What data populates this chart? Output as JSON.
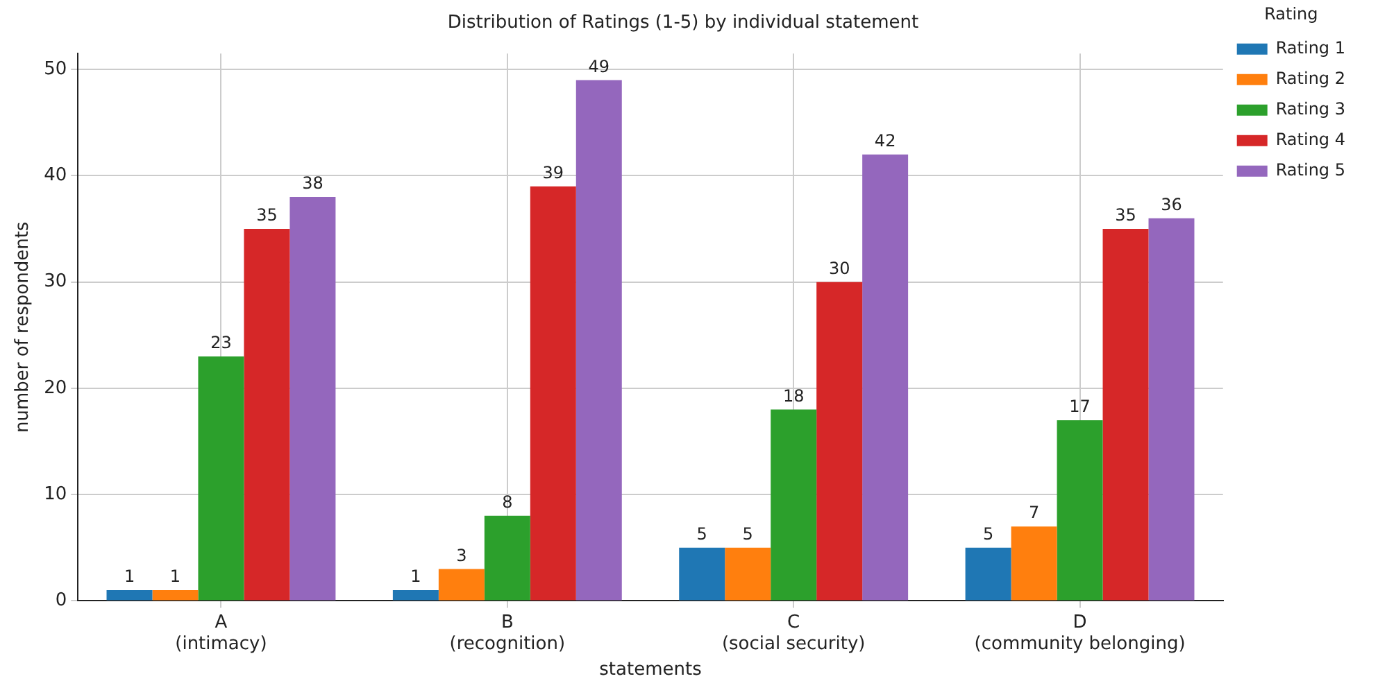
{
  "chart_data": {
    "type": "bar",
    "title": "Distribution of Ratings (1-5) by individual statement",
    "xlabel": "statements",
    "ylabel": "number of respondents",
    "legend_title": "Rating",
    "categories": [
      "A\n(intimacy)",
      "B\n(recognition)",
      "C\n(social security)",
      "D\n(community belonging)"
    ],
    "series": [
      {
        "name": "Rating 1",
        "color": "#1f77b4",
        "values": [
          1,
          1,
          5,
          5
        ]
      },
      {
        "name": "Rating 2",
        "color": "#ff7f0e",
        "values": [
          1,
          3,
          5,
          7
        ]
      },
      {
        "name": "Rating 3",
        "color": "#2ca02c",
        "values": [
          23,
          8,
          18,
          17
        ]
      },
      {
        "name": "Rating 4",
        "color": "#d62728",
        "values": [
          35,
          39,
          30,
          35
        ]
      },
      {
        "name": "Rating 5",
        "color": "#9467bd",
        "values": [
          38,
          49,
          42,
          36
        ]
      }
    ],
    "ylim": [
      0,
      51.5
    ],
    "yticks": [
      0,
      10,
      20,
      30,
      40,
      50
    ],
    "grid": true,
    "legend": "top right",
    "data_labels": true
  }
}
